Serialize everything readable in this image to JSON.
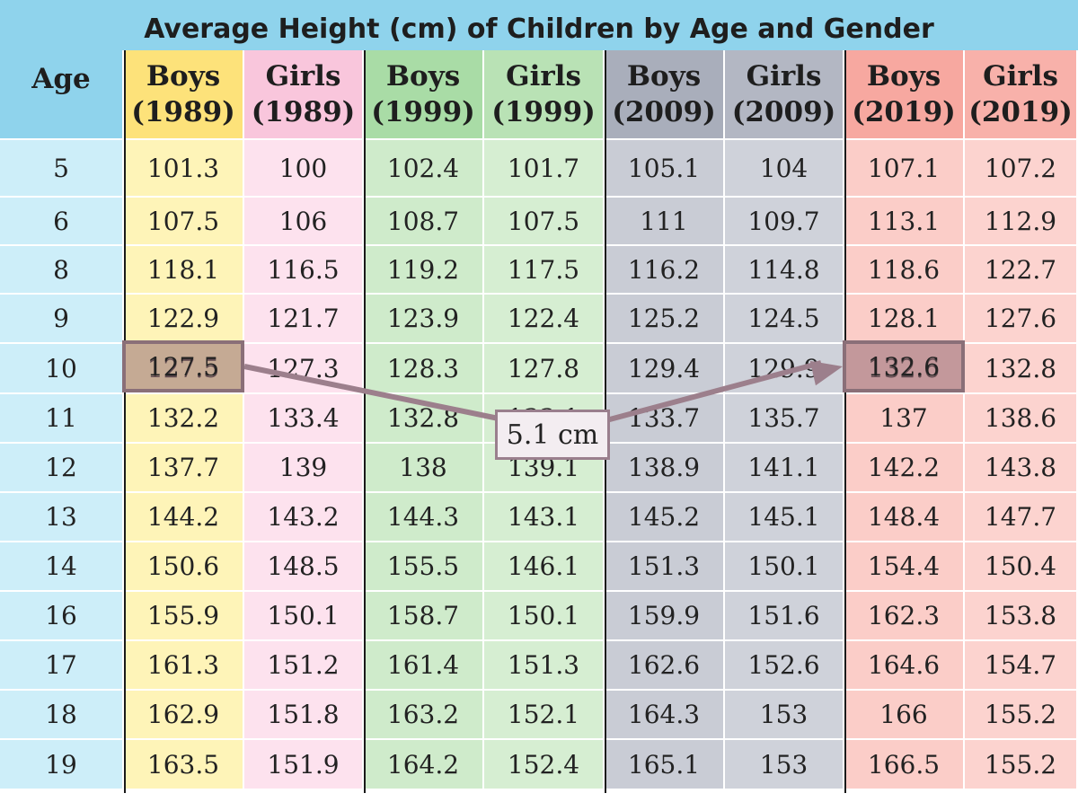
{
  "chart_data": {
    "type": "table",
    "title": "Average Height (cm) of Children by Age and Gender",
    "columns": [
      {
        "label1": "Age",
        "label2": ""
      },
      {
        "label1": "Boys",
        "label2": "(1989)"
      },
      {
        "label1": "Girls",
        "label2": "(1989)"
      },
      {
        "label1": "Boys",
        "label2": "(1999)"
      },
      {
        "label1": "Girls",
        "label2": "(1999)"
      },
      {
        "label1": "Boys",
        "label2": "(2009)"
      },
      {
        "label1": "Girls",
        "label2": "(2009)"
      },
      {
        "label1": "Boys",
        "label2": "(2019)"
      },
      {
        "label1": "Girls",
        "label2": "(2019)"
      }
    ],
    "rows": [
      [
        "5",
        "101.3",
        "100",
        "102.4",
        "101.7",
        "105.1",
        "104",
        "107.1",
        "107.2"
      ],
      [
        "6",
        "107.5",
        "106",
        "108.7",
        "107.5",
        "111",
        "109.7",
        "113.1",
        "112.9"
      ],
      [
        "8",
        "118.1",
        "116.5",
        "119.2",
        "117.5",
        "116.2",
        "114.8",
        "118.6",
        "122.7"
      ],
      [
        "9",
        "122.9",
        "121.7",
        "123.9",
        "122.4",
        "125.2",
        "124.5",
        "128.1",
        "127.6"
      ],
      [
        "10",
        "127.5",
        "127.3",
        "128.3",
        "127.8",
        "129.4",
        "129.9",
        "132.6",
        "132.8"
      ],
      [
        "11",
        "132.2",
        "133.4",
        "132.8",
        "133.1",
        "133.7",
        "135.7",
        "137",
        "138.6"
      ],
      [
        "12",
        "137.7",
        "139",
        "138",
        "139.1",
        "138.9",
        "141.1",
        "142.2",
        "143.8"
      ],
      [
        "13",
        "144.2",
        "143.2",
        "144.3",
        "143.1",
        "145.2",
        "145.1",
        "148.4",
        "147.7"
      ],
      [
        "14",
        "150.6",
        "148.5",
        "155.5",
        "146.1",
        "151.3",
        "150.1",
        "154.4",
        "150.4"
      ],
      [
        "16",
        "155.9",
        "150.1",
        "158.7",
        "150.1",
        "159.9",
        "151.6",
        "162.3",
        "153.8"
      ],
      [
        "17",
        "161.3",
        "151.2",
        "161.4",
        "151.3",
        "162.6",
        "152.6",
        "164.6",
        "154.7"
      ],
      [
        "18",
        "162.9",
        "151.8",
        "163.2",
        "152.1",
        "164.3",
        "153",
        "166",
        "155.2"
      ],
      [
        "19",
        "163.5",
        "151.9",
        "164.2",
        "152.4",
        "165.1",
        "153",
        "166.5",
        "155.2"
      ]
    ],
    "annotation": {
      "text": "5.1 cm",
      "from": {
        "row": 4,
        "col": 1
      },
      "to": {
        "row": 4,
        "col": 7
      }
    }
  },
  "colors": {
    "title_bg": "#8fd3ec",
    "age_header": "#8fd3ec",
    "age_body": "#cdeef9",
    "boys_1989_header": "#fde27a",
    "boys_1989_body": "#fef4b8",
    "girls_1989_header": "#f9c6dc",
    "girls_1989_body": "#fde2ee",
    "boys_1999_header": "#a9dca6",
    "boys_1999_body": "#cfebcb",
    "girls_1999_header": "#b9e2b5",
    "girls_1999_body": "#d6eed2",
    "boys_2009_header": "#a9aebb",
    "boys_2009_body": "#c9ccd5",
    "girls_2009_header": "#b3b7c3",
    "girls_2009_body": "#cfd2da",
    "boys_2019_header": "#f7a8a0",
    "boys_2019_body": "#fbcdc8",
    "girls_2019_header": "#f8b1aa",
    "girls_2019_body": "#fcd3cf",
    "highlight_border": "#8a6f78",
    "arrow": "#9c7f8c"
  }
}
